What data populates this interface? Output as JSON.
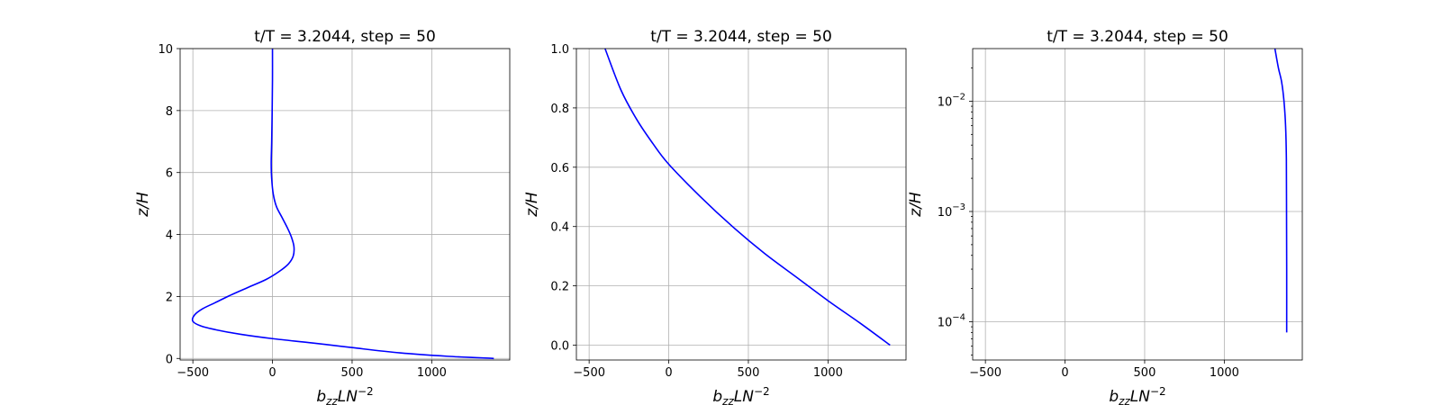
{
  "chart_data": [
    {
      "type": "line",
      "title": "t/T = 3.2044, step = 50",
      "xlabel": {
        "base": "b",
        "sub": "zz",
        "mid": "LN",
        "sup": "−2"
      },
      "ylabel": "z/H",
      "xlim": [
        -580,
        1490
      ],
      "ylim": [
        -0.05,
        10
      ],
      "yscale": "linear",
      "grid": true,
      "x_ticks": [
        {
          "value": -500,
          "label": "−500"
        },
        {
          "value": 0,
          "label": "0"
        },
        {
          "value": 500,
          "label": "500"
        },
        {
          "value": 1000,
          "label": "1000"
        }
      ],
      "y_ticks": [
        {
          "value": 0,
          "label": "0"
        },
        {
          "value": 2,
          "label": "2"
        },
        {
          "value": 4,
          "label": "4"
        },
        {
          "value": 6,
          "label": "6"
        },
        {
          "value": 8,
          "label": "8"
        },
        {
          "value": 10,
          "label": "10"
        }
      ],
      "series": [
        {
          "color": "#0000ff",
          "points": [
            [
              1390,
              0
            ],
            [
              1100,
              0.07
            ],
            [
              800,
              0.18
            ],
            [
              500,
              0.35
            ],
            [
              250,
              0.5
            ],
            [
              0,
              0.64
            ],
            [
              -200,
              0.78
            ],
            [
              -350,
              0.92
            ],
            [
              -450,
              1.05
            ],
            [
              -500,
              1.2
            ],
            [
              -490,
              1.4
            ],
            [
              -440,
              1.6
            ],
            [
              -360,
              1.8
            ],
            [
              -260,
              2.05
            ],
            [
              -150,
              2.3
            ],
            [
              -40,
              2.55
            ],
            [
              40,
              2.8
            ],
            [
              100,
              3.05
            ],
            [
              130,
              3.3
            ],
            [
              135,
              3.6
            ],
            [
              120,
              3.9
            ],
            [
              95,
              4.2
            ],
            [
              60,
              4.55
            ],
            [
              25,
              4.9
            ],
            [
              5,
              5.3
            ],
            [
              -5,
              5.8
            ],
            [
              -8,
              6.3
            ],
            [
              -5,
              7
            ],
            [
              -2,
              8
            ],
            [
              0,
              9
            ],
            [
              0,
              10
            ]
          ]
        }
      ]
    },
    {
      "type": "line",
      "title": "t/T = 3.2044, step = 50",
      "xlabel": {
        "base": "b",
        "sub": "zz",
        "mid": "LN",
        "sup": "−2"
      },
      "ylabel": "z/H",
      "xlim": [
        -580,
        1490
      ],
      "ylim": [
        -0.05,
        1.0
      ],
      "yscale": "linear",
      "grid": true,
      "x_ticks": [
        {
          "value": -500,
          "label": "−500"
        },
        {
          "value": 0,
          "label": "0"
        },
        {
          "value": 500,
          "label": "500"
        },
        {
          "value": 1000,
          "label": "1000"
        }
      ],
      "y_ticks": [
        {
          "value": 0.0,
          "label": "0.0"
        },
        {
          "value": 0.2,
          "label": "0.2"
        },
        {
          "value": 0.4,
          "label": "0.4"
        },
        {
          "value": 0.6,
          "label": "0.6"
        },
        {
          "value": 0.8,
          "label": "0.8"
        },
        {
          "value": 1.0,
          "label": "1.0"
        }
      ],
      "series": [
        {
          "color": "#0000ff",
          "points": [
            [
              1390,
              0
            ],
            [
              1200,
              0.075
            ],
            [
              1000,
              0.15
            ],
            [
              800,
              0.23
            ],
            [
              600,
              0.31
            ],
            [
              400,
              0.4
            ],
            [
              200,
              0.5
            ],
            [
              0,
              0.61
            ],
            [
              -100,
              0.68
            ],
            [
              -200,
              0.76
            ],
            [
              -300,
              0.86
            ],
            [
              -400,
              1.0
            ]
          ]
        }
      ]
    },
    {
      "type": "line",
      "title": "t/T = 3.2044, step = 50",
      "xlabel": {
        "base": "b",
        "sub": "zz",
        "mid": "LN",
        "sup": "−2"
      },
      "ylabel": "z/H",
      "xlim": [
        -580,
        1490
      ],
      "ylim": [
        4.5e-05,
        0.03
      ],
      "yscale": "log",
      "grid": true,
      "x_ticks": [
        {
          "value": -500,
          "label": "−500"
        },
        {
          "value": 0,
          "label": "0"
        },
        {
          "value": 500,
          "label": "500"
        },
        {
          "value": 1000,
          "label": "1000"
        }
      ],
      "y_ticks": [
        {
          "value": 0.0001,
          "base": "10",
          "exp": "−4"
        },
        {
          "value": 0.001,
          "base": "10",
          "exp": "−3"
        },
        {
          "value": 0.01,
          "base": "10",
          "exp": "−2"
        }
      ],
      "series": [
        {
          "color": "#0000ff",
          "points": [
            [
              1392,
              8e-05
            ],
            [
              1392,
              0.0003
            ],
            [
              1391,
              0.001
            ],
            [
              1390,
              0.003
            ],
            [
              1385,
              0.006
            ],
            [
              1375,
              0.01
            ],
            [
              1360,
              0.015
            ],
            [
              1340,
              0.02
            ],
            [
              1318,
              0.03
            ]
          ]
        }
      ]
    }
  ]
}
